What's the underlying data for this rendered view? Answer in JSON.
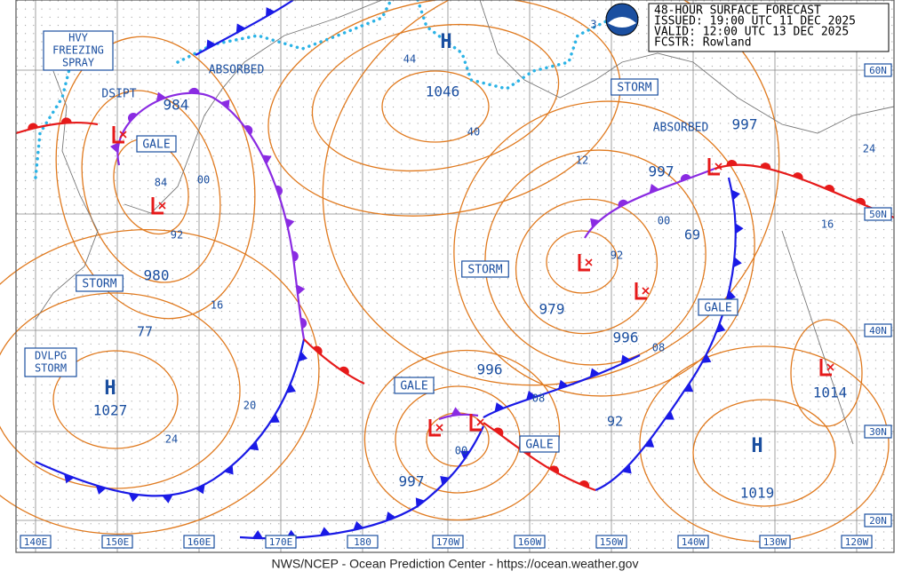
{
  "header": {
    "title": "48-HOUR SURFACE FORECAST",
    "issued": "ISSUED: 19:00 UTC 11 DEC 2025",
    "valid": "VALID: 12:00 UTC 13 DEC 2025",
    "forecaster": "FCSTR: Rowland"
  },
  "footer": "NWS/NCEP - Ocean Prediction Center - https://ocean.weather.gov",
  "latitude_labels": [
    "60N",
    "50N",
    "40N",
    "30N",
    "20N"
  ],
  "longitude_labels": [
    "140E",
    "150E",
    "160E",
    "170E",
    "180",
    "170W",
    "160W",
    "150W",
    "140W",
    "130W",
    "120W"
  ],
  "freezing_spray": [
    "HVY",
    "FREEZING",
    "SPRAY"
  ],
  "developing_storm": [
    "DVLPG",
    "STORM"
  ],
  "boxed_warnings": [
    "GALE",
    "STORM",
    "STORM",
    "STORM",
    "GALE",
    "GALE",
    "GALE"
  ],
  "plain_notes": [
    "DSIPT",
    "ABSORBED",
    "ABSORBED"
  ],
  "highs": [
    {
      "symbol": "H",
      "pressure": "1046"
    },
    {
      "symbol": "H",
      "pressure": "1027"
    },
    {
      "symbol": "H",
      "pressure": "1019"
    }
  ],
  "low_pressures": [
    "984",
    "980",
    "997",
    "997",
    "979",
    "996",
    "996",
    "997",
    "1014"
  ],
  "isobar_labels": [
    "44",
    "40",
    "12",
    "84",
    "00",
    "92",
    "16",
    "20",
    "24",
    "77",
    "69",
    "00",
    "92",
    "08",
    "08",
    "00",
    "92",
    "24",
    "16",
    "3"
  ]
}
